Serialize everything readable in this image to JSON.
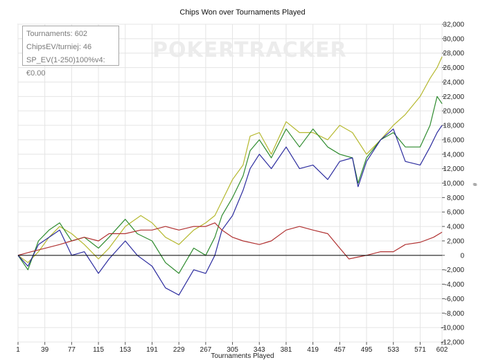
{
  "chart_data": {
    "type": "line",
    "title": "Chips Won over Tournaments Played",
    "xlabel": "Tournaments Played",
    "ylabel": "#",
    "xlim": [
      1,
      602
    ],
    "ylim": [
      -12000,
      32000
    ],
    "x_ticks": [
      1,
      39,
      77,
      115,
      153,
      191,
      229,
      267,
      305,
      343,
      381,
      419,
      457,
      495,
      533,
      571,
      602
    ],
    "y_ticks": [
      -12000,
      -10000,
      -8000,
      -6000,
      -4000,
      -2000,
      0,
      2000,
      4000,
      6000,
      8000,
      10000,
      12000,
      14000,
      16000,
      18000,
      20000,
      22000,
      24000,
      26000,
      28000,
      30000,
      32000
    ],
    "y_tick_labels": [
      "-12,000",
      "-10,000",
      "-8,000",
      "-6,000",
      "-4,000",
      "-2,000",
      "0",
      "2,000",
      "4,000",
      "6,000",
      "8,000",
      "10,000",
      "12,000",
      "14,000",
      "16,000",
      "18,000",
      "20,000",
      "22,000",
      "24,000",
      "26,000",
      "28,000",
      "30,000",
      "32,000"
    ],
    "grid": true,
    "series": [
      {
        "color": "#b5b82e",
        "x": [
          1,
          15,
          30,
          45,
          60,
          77,
          95,
          115,
          130,
          153,
          175,
          191,
          210,
          229,
          250,
          267,
          280,
          290,
          305,
          320,
          330,
          343,
          360,
          381,
          400,
          419,
          440,
          457,
          475,
          495,
          515,
          533,
          550,
          571,
          585,
          595,
          602
        ],
        "y": [
          0,
          -1000,
          500,
          2500,
          4000,
          3000,
          1500,
          -500,
          1000,
          4000,
          5500,
          4500,
          2500,
          1500,
          3500,
          4500,
          5500,
          7500,
          10500,
          12500,
          16500,
          17000,
          14000,
          18500,
          17000,
          17000,
          16000,
          18000,
          17000,
          14000,
          16000,
          18000,
          19500,
          22000,
          24500,
          26000,
          27500
        ]
      },
      {
        "color": "#2e8b2e",
        "x": [
          1,
          15,
          30,
          45,
          60,
          77,
          95,
          115,
          130,
          153,
          170,
          191,
          210,
          229,
          250,
          267,
          280,
          290,
          305,
          320,
          330,
          343,
          360,
          381,
          400,
          419,
          440,
          457,
          475,
          483,
          495,
          515,
          533,
          550,
          571,
          585,
          595,
          602
        ],
        "y": [
          0,
          -2000,
          2000,
          3500,
          4500,
          2000,
          2500,
          1000,
          2500,
          5000,
          3000,
          2000,
          -1000,
          -2500,
          1000,
          0,
          2500,
          5500,
          8000,
          11000,
          14500,
          16000,
          13500,
          17500,
          15000,
          17500,
          15000,
          14000,
          13500,
          10000,
          13500,
          16000,
          17000,
          15000,
          15000,
          18000,
          22000,
          21000
        ]
      },
      {
        "color": "#2b2b9e",
        "x": [
          1,
          15,
          30,
          45,
          60,
          77,
          95,
          115,
          130,
          153,
          170,
          191,
          210,
          229,
          250,
          267,
          280,
          290,
          305,
          320,
          330,
          343,
          360,
          381,
          400,
          419,
          440,
          457,
          475,
          483,
          495,
          515,
          533,
          550,
          571,
          585,
          595,
          602
        ],
        "y": [
          0,
          -1500,
          1500,
          2500,
          3500,
          0,
          500,
          -2500,
          -500,
          2000,
          0,
          -1500,
          -4500,
          -5500,
          -2000,
          -2500,
          0,
          3500,
          5500,
          9000,
          12000,
          14000,
          12000,
          15000,
          12000,
          12500,
          10500,
          13000,
          13500,
          9500,
          13000,
          16000,
          17500,
          13000,
          12500,
          15000,
          17000,
          18000
        ]
      },
      {
        "color": "#b03030",
        "x": [
          1,
          20,
          40,
          60,
          77,
          95,
          115,
          130,
          153,
          175,
          191,
          210,
          229,
          250,
          267,
          280,
          290,
          305,
          320,
          343,
          360,
          381,
          400,
          419,
          440,
          457,
          470,
          480,
          495,
          515,
          533,
          550,
          571,
          590,
          602
        ],
        "y": [
          0,
          500,
          1000,
          1500,
          2000,
          2500,
          2000,
          3000,
          3000,
          3500,
          3500,
          4000,
          3500,
          4000,
          4000,
          4500,
          3500,
          2500,
          2000,
          1500,
          2000,
          3500,
          4000,
          3500,
          3000,
          1000,
          -500,
          -300,
          0,
          500,
          500,
          1500,
          1800,
          2500,
          3200
        ]
      }
    ]
  },
  "info_box": {
    "line1": "Tournaments: 602",
    "line2": "ChipsEV/turniej: 46",
    "line3": "SP_EV(1-250)100%v4: €0.00"
  },
  "watermark": "POKERTRACKER"
}
